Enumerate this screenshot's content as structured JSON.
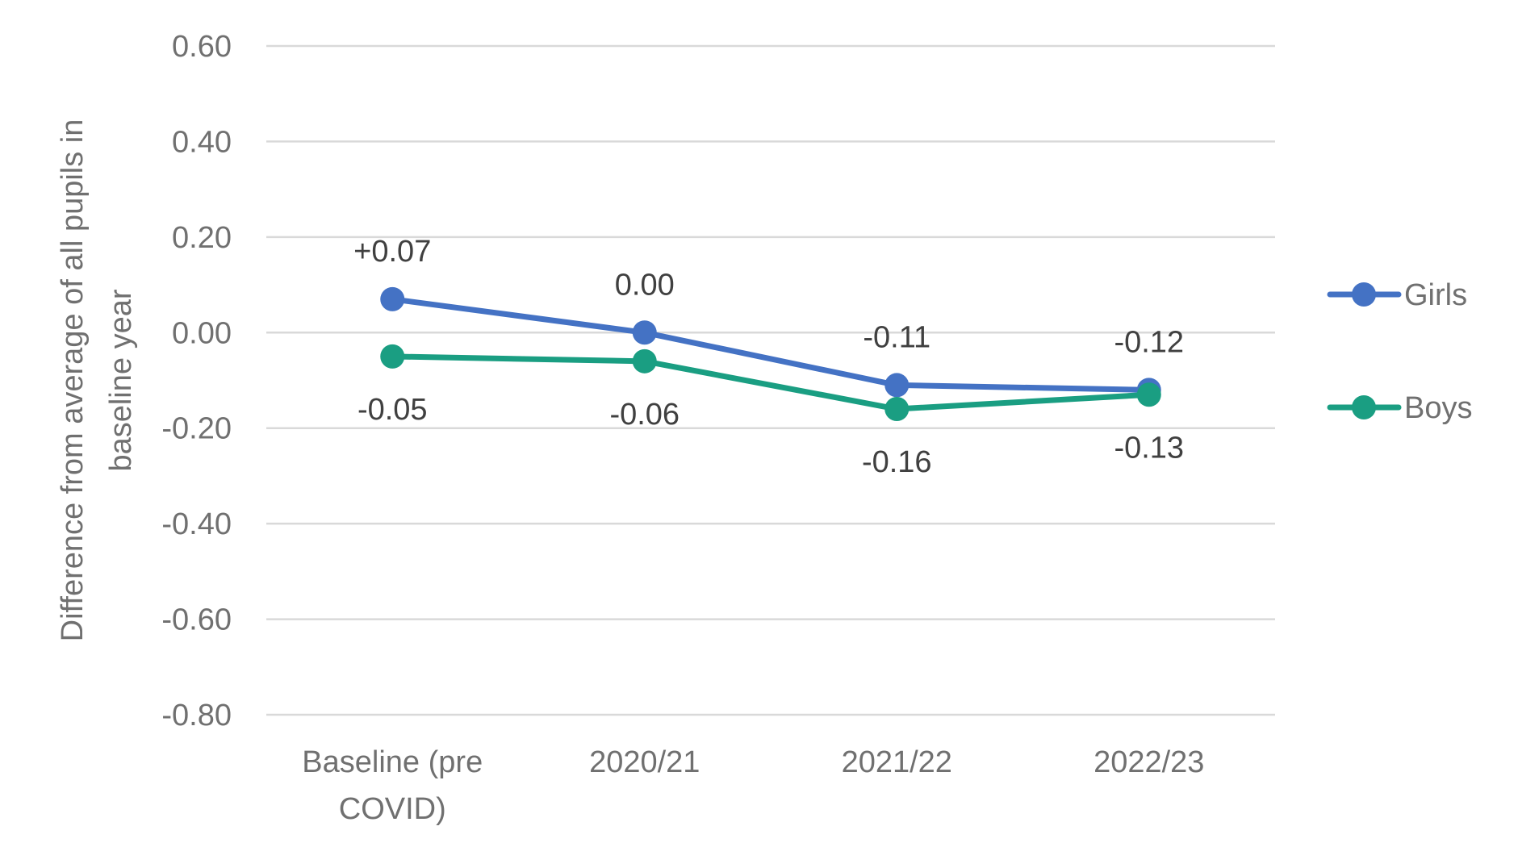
{
  "chart_data": {
    "type": "line",
    "title": "",
    "xlabel": "",
    "ylabel_lines": [
      "Difference from average of all pupils in",
      "baseline year"
    ],
    "categories": [
      [
        "Baseline (pre",
        "COVID)"
      ],
      [
        "2020/21"
      ],
      [
        "2021/22"
      ],
      [
        "2022/23"
      ]
    ],
    "ylim": [
      -0.8,
      0.6
    ],
    "yticks": [
      "0.60",
      "0.40",
      "0.20",
      "0.00",
      "-0.20",
      "-0.40",
      "-0.60",
      "-0.80"
    ],
    "grid": "horizontal",
    "legend_position": "right",
    "series": [
      {
        "name": "Girls",
        "color": "#4472C4",
        "values": [
          0.07,
          0.0,
          -0.11,
          -0.12
        ],
        "labels": [
          "+0.07",
          "0.00",
          "-0.11",
          "-0.12"
        ],
        "label_position": "above"
      },
      {
        "name": "Boys",
        "color": "#1A9E82",
        "values": [
          -0.05,
          -0.06,
          -0.16,
          -0.13
        ],
        "labels": [
          "-0.05",
          "-0.06",
          "-0.16",
          "-0.13"
        ],
        "label_position": "below"
      }
    ]
  }
}
